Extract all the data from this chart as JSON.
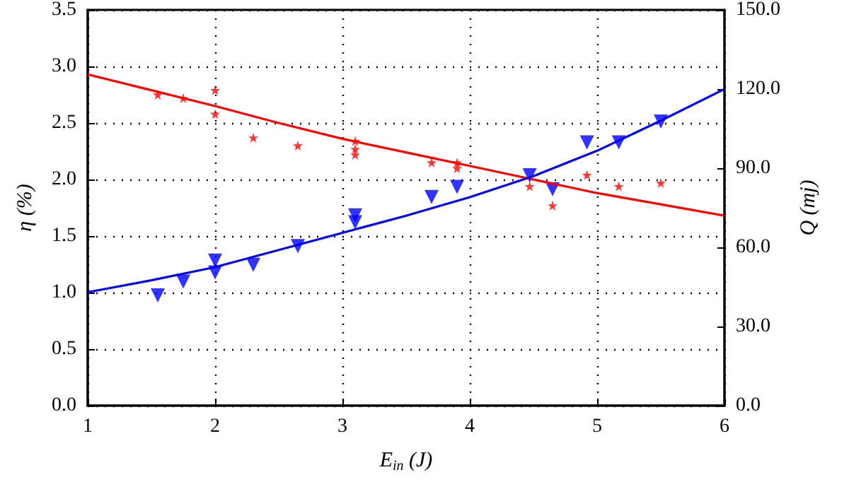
{
  "chart_data": {
    "type": "scatter",
    "xlabel": "E$_{in}$ (J)",
    "ylabel": "η (%)",
    "y2label": "Q (mj)",
    "xlim": [
      1,
      6
    ],
    "xticks": [
      1,
      2,
      3,
      4,
      5,
      6
    ],
    "ylim": [
      0,
      3.5
    ],
    "yticks": [
      {
        "value": 0,
        "label": "0.0"
      },
      {
        "value": 0.5,
        "label": "0.5"
      },
      {
        "value": 1,
        "label": "1.0"
      },
      {
        "value": 1.5,
        "label": "1.5"
      },
      {
        "value": 2,
        "label": "2.0"
      },
      {
        "value": 2.5,
        "label": "2.5"
      },
      {
        "value": 3,
        "label": "3.0"
      },
      {
        "value": 3.5,
        "label": "3.5"
      }
    ],
    "y2lim": [
      0,
      150
    ],
    "y2ticks": [
      {
        "value": 0,
        "label": "0.0"
      },
      {
        "value": 30,
        "label": "30.0"
      },
      {
        "value": 60,
        "label": "60.0"
      },
      {
        "value": 90,
        "label": "90.0"
      },
      {
        "value": 120,
        "label": "120.0"
      },
      {
        "value": 150,
        "label": "150.0"
      }
    ],
    "grid": true,
    "series": [
      {
        "color": "#ff0000",
        "marker": "star",
        "x": [
          1.55,
          1.75,
          2.0,
          2.0,
          2.3,
          2.65,
          3.1,
          3.1,
          3.1,
          3.7,
          3.9,
          3.9,
          4.47,
          4.65,
          4.92,
          5.17,
          5.5
        ],
        "values": [
          2.75,
          2.72,
          2.79,
          2.58,
          2.37,
          2.3,
          2.34,
          2.27,
          2.22,
          2.15,
          2.15,
          2.1,
          1.94,
          1.77,
          2.04,
          1.94,
          1.97
        ]
      },
      {
        "type": "line",
        "color": "#ff0000",
        "marker": "none",
        "x": [
          1,
          1.5,
          2,
          2.5,
          3,
          3.5,
          4,
          4.5,
          5,
          5.5,
          6
        ],
        "values": [
          2.93,
          2.79,
          2.65,
          2.5,
          2.36,
          2.24,
          2.12,
          2.0,
          1.88,
          1.78,
          1.68
        ]
      },
      {
        "color": "#0000ff",
        "marker": "triangle",
        "axis": "y2",
        "x": [
          1.55,
          1.75,
          2.0,
          2.0,
          2.3,
          2.65,
          3.1,
          3.1,
          3.7,
          3.9,
          4.47,
          4.65,
          4.92,
          5.17,
          5.5
        ],
        "values": [
          41.8,
          47.0,
          55.0,
          50.5,
          53.4,
          60.5,
          72.1,
          69.5,
          79.1,
          82.9,
          87.3,
          82.0,
          99.8,
          99.8,
          107.7
        ]
      },
      {
        "type": "line",
        "color": "#0000ff",
        "marker": "none",
        "axis": "y2",
        "x": [
          1,
          1.5,
          2,
          2.5,
          3,
          3.5,
          4,
          4.5,
          5,
          5.5,
          6
        ],
        "values": [
          43.0,
          47.5,
          52.5,
          59.0,
          65.5,
          72.0,
          79.0,
          87.0,
          96.6,
          108.0,
          120.0
        ]
      }
    ]
  }
}
